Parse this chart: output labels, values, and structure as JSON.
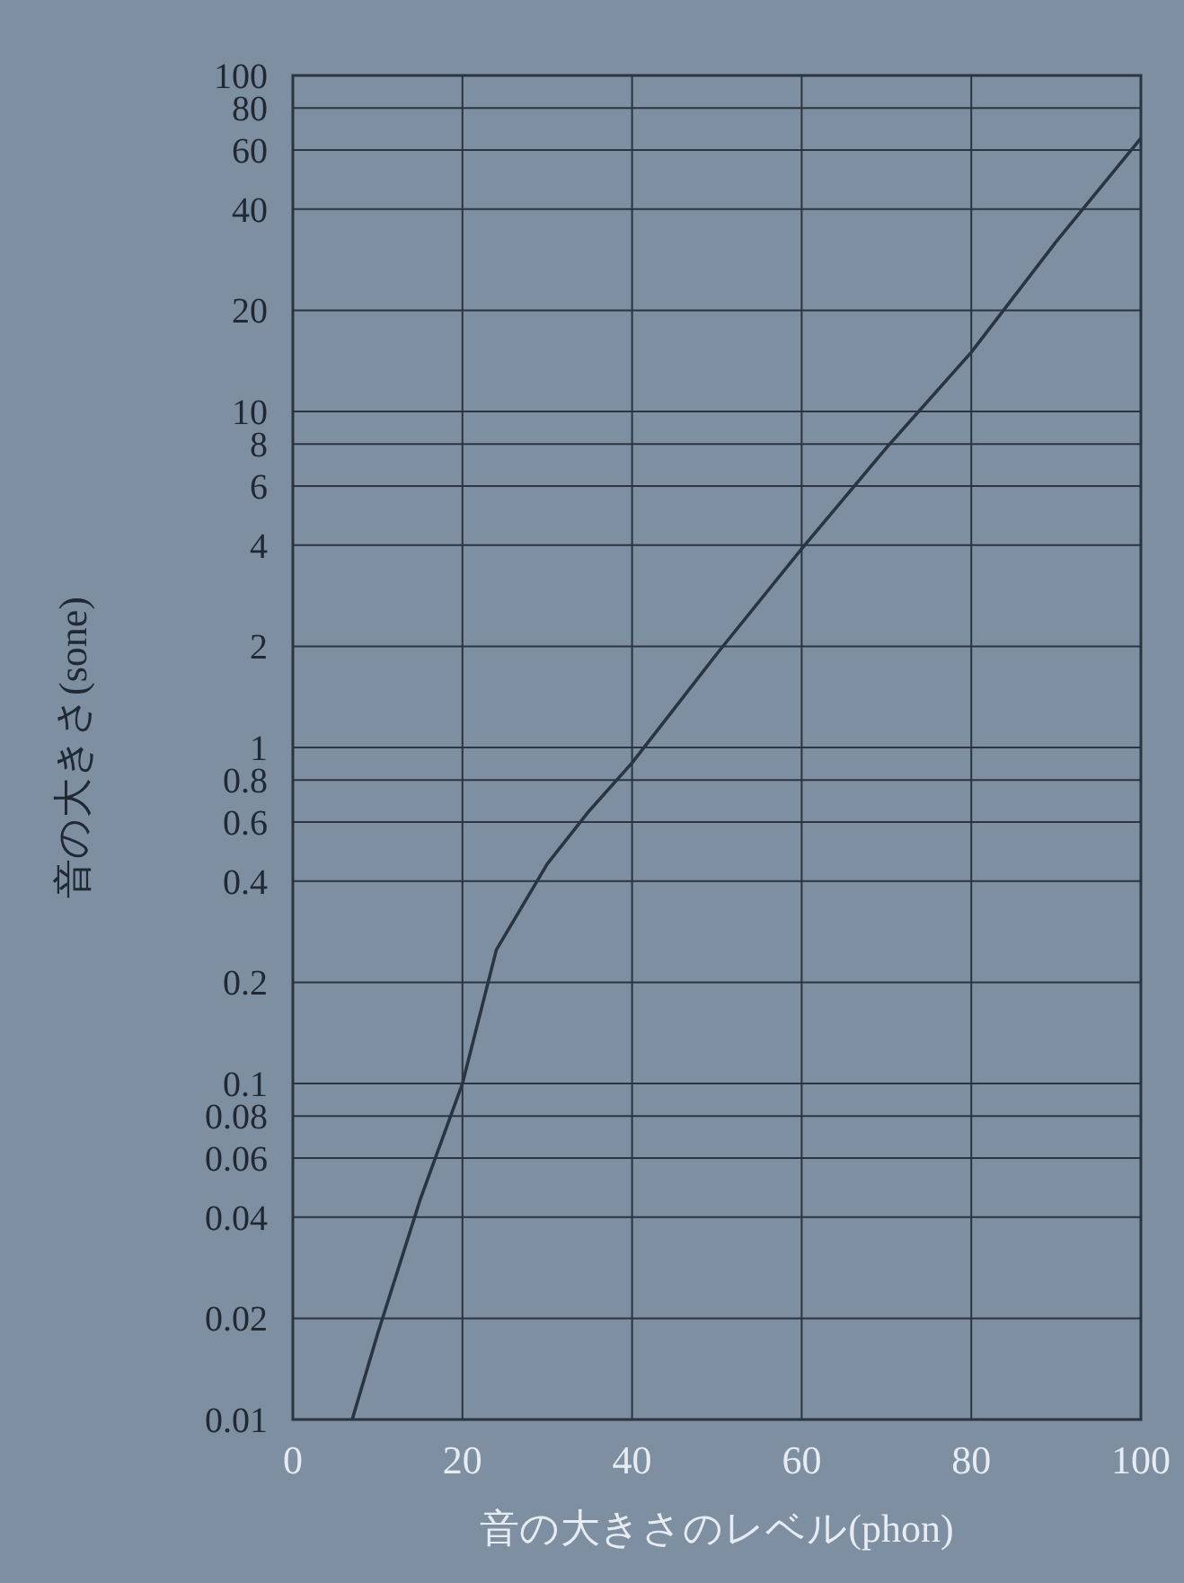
{
  "chart_data": {
    "type": "line",
    "xlabel": "音の大きさのレベル(phon)",
    "ylabel": "音の大きさ(sone)",
    "series": [
      {
        "color": "#2b3541",
        "x": [
          7,
          10,
          15,
          20,
          24,
          30,
          35,
          40,
          50,
          60,
          70,
          80,
          90,
          100
        ],
        "values": [
          0.01,
          0.018,
          0.045,
          0.1,
          0.25,
          0.45,
          0.65,
          0.9,
          1.9,
          3.9,
          7.8,
          15,
          32,
          65
        ]
      }
    ],
    "xlim": [
      0,
      100
    ],
    "ylim": [
      0.01,
      100
    ],
    "xticks": [
      0,
      20,
      40,
      60,
      80,
      100
    ],
    "yticks": [
      0.01,
      0.02,
      0.04,
      0.06,
      0.08,
      0.1,
      0.2,
      0.4,
      0.6,
      0.8,
      1,
      2,
      4,
      6,
      8,
      10,
      20,
      40,
      60,
      80,
      100
    ],
    "log": "y",
    "grid": true
  }
}
